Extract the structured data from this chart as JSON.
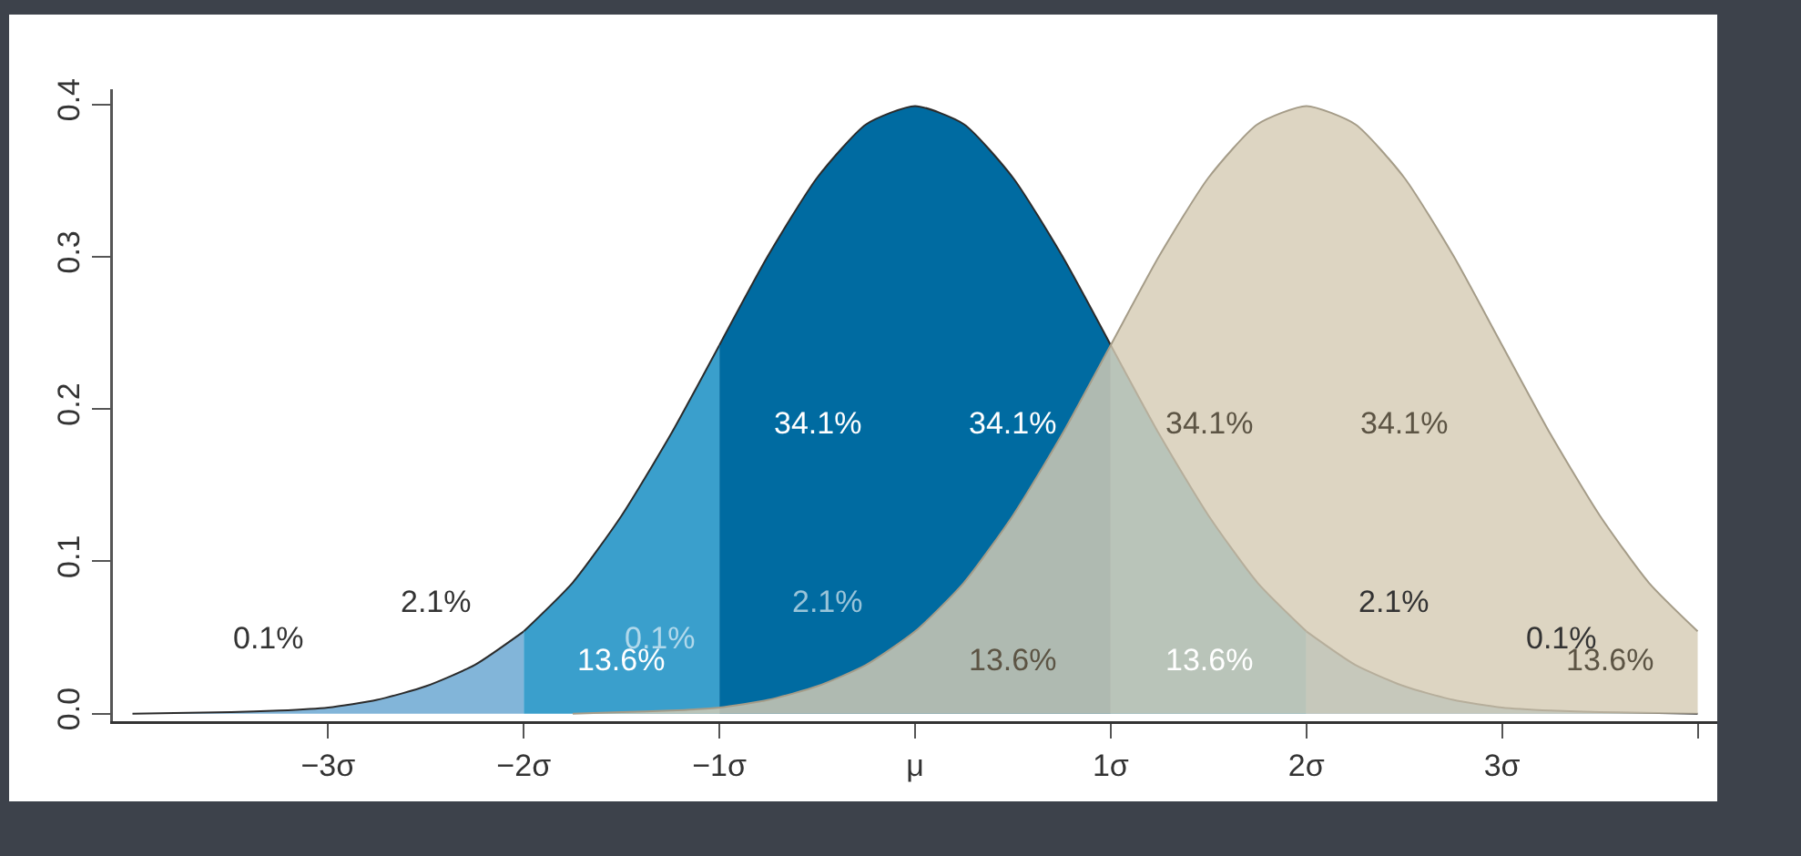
{
  "chart_data": {
    "type": "area",
    "xlim": [
      -4.1,
      4.1
    ],
    "ylim": [
      -0.005,
      0.41
    ],
    "xticks": [
      {
        "value": -3,
        "label": "−3σ"
      },
      {
        "value": -2,
        "label": "−2σ"
      },
      {
        "value": -1,
        "label": "−1σ"
      },
      {
        "value": 0,
        "label": "μ"
      },
      {
        "value": 1,
        "label": "1σ"
      },
      {
        "value": 2,
        "label": "2σ"
      },
      {
        "value": 3,
        "label": "3σ"
      },
      {
        "value": 4,
        "label": null
      }
    ],
    "yticks": [
      {
        "value": 0,
        "label": "0.0"
      },
      {
        "value": 0.1,
        "label": "0.1"
      },
      {
        "value": 0.2,
        "label": "0.2"
      },
      {
        "value": 0.3,
        "label": "0.3"
      },
      {
        "value": 0.4,
        "label": "0.4"
      }
    ],
    "grid": false,
    "series": [
      {
        "color": "#82b5d9",
        "x": [
          -4,
          -3.5,
          -3.25,
          -3,
          -2.75,
          -2.5,
          -2.25,
          -2
        ],
        "values": [
          0,
          0.001,
          0.002,
          0.004,
          0.009,
          0.018,
          0.032,
          0.054
        ]
      },
      {
        "color": "#3a9fcc",
        "x": [
          -2,
          -1.75,
          -1.5,
          -1.25,
          -1
        ],
        "values": [
          0.054,
          0.086,
          0.13,
          0.183,
          0.242
        ]
      },
      {
        "color": "#006ba1",
        "x": [
          -1,
          -0.75,
          -0.5,
          -0.25,
          0,
          0.25,
          0.5,
          0.75,
          1
        ],
        "values": [
          0.242,
          0.301,
          0.352,
          0.387,
          0.399,
          0.387,
          0.352,
          0.301,
          0.242
        ]
      },
      {
        "color": "#3a9fcc",
        "x": [
          1,
          1.25,
          1.5,
          1.75,
          2
        ],
        "values": [
          0.242,
          0.183,
          0.13,
          0.086,
          0.054
        ]
      },
      {
        "color": "#82b5d9",
        "x": [
          2,
          2.25,
          2.5,
          2.75,
          3,
          3.25,
          3.5,
          4
        ],
        "values": [
          0.054,
          0.032,
          0.018,
          0.009,
          0.004,
          0.002,
          0.001,
          0
        ]
      },
      {
        "color": "#d6ccb4",
        "x": [
          -1.75,
          -1.5,
          -1.25,
          -1,
          -0.75,
          -0.5,
          -0.25,
          0,
          0.25,
          0.5,
          0.75,
          1,
          1.25,
          1.5,
          1.75,
          2,
          2.25,
          2.5,
          2.75,
          3,
          3.25,
          3.5,
          3.75,
          4
        ],
        "values": [
          0,
          0.001,
          0.002,
          0.004,
          0.009,
          0.018,
          0.032,
          0.054,
          0.086,
          0.13,
          0.183,
          0.242,
          0.301,
          0.352,
          0.387,
          0.399,
          0.387,
          0.352,
          0.301,
          0.242,
          0.183,
          0.13,
          0.086,
          0.054
        ]
      }
    ],
    "annotations": [
      "0.1%",
      "2.1%",
      "13.6%",
      "34.1%",
      "34.1%",
      "13.6%",
      "2.1%",
      "0.1%",
      "0.1%",
      "2.1%",
      "13.6%",
      "34.1%",
      "34.1%",
      "13.6%"
    ]
  }
}
